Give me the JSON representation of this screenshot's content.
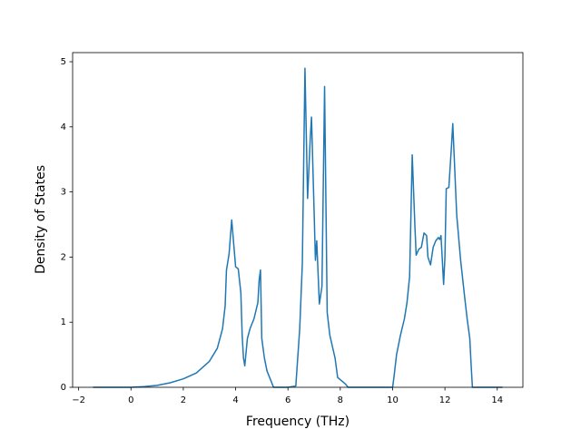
{
  "chart_data": {
    "type": "line",
    "x_label": "Frequency (THz)",
    "y_label": "Density of States",
    "color": "#1f77b4",
    "x": [
      -1.45,
      0,
      0.5,
      1,
      1.5,
      2,
      2.5,
      3,
      3.3,
      3.5,
      3.6,
      3.65,
      3.75,
      3.85,
      4.0,
      4.1,
      4.2,
      4.25,
      4.3,
      4.35,
      4.45,
      4.55,
      4.7,
      4.85,
      4.9,
      4.95,
      5.0,
      5.1,
      5.2,
      5.35,
      5.45,
      6.0,
      6.3,
      6.45,
      6.55,
      6.65,
      6.75,
      6.85,
      6.9,
      7.0,
      7.05,
      7.1,
      7.2,
      7.3,
      7.4,
      7.5,
      7.6,
      7.8,
      7.9,
      8.2,
      8.3,
      10.0,
      10.05,
      10.15,
      10.3,
      10.45,
      10.55,
      10.65,
      10.75,
      10.85,
      10.9,
      11.0,
      11.1,
      11.2,
      11.3,
      11.35,
      11.45,
      11.55,
      11.65,
      11.75,
      11.8,
      11.85,
      11.95,
      12.0,
      12.05,
      12.15,
      12.25,
      12.3,
      12.45,
      12.6,
      12.75,
      12.85,
      12.95,
      13.0,
      13.05,
      14.2
    ],
    "values": [
      0,
      0,
      0.01,
      0.03,
      0.07,
      0.13,
      0.22,
      0.4,
      0.6,
      0.9,
      1.25,
      1.8,
      2.05,
      2.57,
      1.85,
      1.82,
      1.45,
      0.8,
      0.45,
      0.33,
      0.75,
      0.9,
      1.05,
      1.3,
      1.65,
      1.8,
      0.75,
      0.45,
      0.25,
      0.1,
      0,
      0,
      0.02,
      0.9,
      1.9,
      4.9,
      2.9,
      3.8,
      4.15,
      2.7,
      1.95,
      2.25,
      1.28,
      1.55,
      4.62,
      1.15,
      0.8,
      0.45,
      0.15,
      0.05,
      0,
      0,
      0.15,
      0.5,
      0.8,
      1.05,
      1.3,
      1.7,
      3.57,
      2.5,
      2.03,
      2.12,
      2.15,
      2.37,
      2.33,
      2.0,
      1.88,
      2.15,
      2.25,
      2.3,
      2.27,
      2.33,
      1.58,
      2.0,
      3.05,
      3.07,
      3.7,
      4.05,
      2.65,
      1.95,
      1.4,
      1.05,
      0.75,
      0.35,
      0,
      0
    ],
    "xlim": [
      -2.23,
      14.98
    ],
    "ylim": [
      0,
      5.14
    ],
    "xticks": [
      {
        "value": -2,
        "label": "−2"
      },
      0,
      2,
      4,
      6,
      8,
      10,
      12,
      14
    ],
    "yticks": [
      0,
      1,
      2,
      3,
      4,
      5
    ]
  }
}
